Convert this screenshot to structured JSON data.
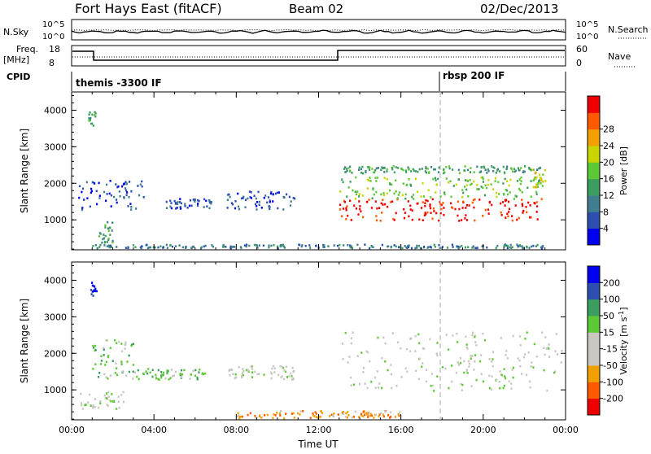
{
  "header": {
    "station": "Fort Hays East (fitACF)",
    "beam": "Beam 02",
    "date": "02/Dec/2013"
  },
  "status_panels": {
    "nsky_label": "N.Sky",
    "nsky_ticks": [
      "10^5",
      "10^0"
    ],
    "nsearch_label": "N.Search",
    "nsearch_ticks": [
      "10^5",
      "10^0"
    ],
    "freq_label_1": "Freq.",
    "freq_label_2": "[MHz]",
    "freq_ticks": [
      "18",
      "8"
    ],
    "nave_label": "Nave",
    "nave_ticks": [
      "60",
      "0"
    ],
    "cpid_label": "CPID",
    "cpid_entries": [
      "themis -3300 IF",
      "rbsp 200 IF"
    ]
  },
  "chart_data": [
    {
      "type": "heatmap",
      "quantity": "Power",
      "ylabel": "Slant Range [km]",
      "xlabel": "",
      "yticks": [
        "1000",
        "2000",
        "3000",
        "4000"
      ],
      "ylim": [
        180,
        4500
      ],
      "xlim": [
        0,
        24
      ],
      "colorbar": {
        "label": "Power [dB]",
        "ticks": [
          "4",
          "8",
          "12",
          "16",
          "20",
          "24",
          "28"
        ],
        "colors": [
          "#0000ee",
          "#2c4fb0",
          "#3f7e8e",
          "#3c9e5e",
          "#5ec936",
          "#c9d400",
          "#f0a000",
          "#ff5a00",
          "#ee0000"
        ]
      },
      "regions": [
        {
          "t": [
            0.3,
            3.5
          ],
          "r": [
            1300,
            2100
          ],
          "level": 1
        },
        {
          "t": [
            4.5,
            7.0
          ],
          "r": [
            1300,
            1600
          ],
          "level": 1
        },
        {
          "t": [
            7.5,
            10.8
          ],
          "r": [
            1300,
            1800
          ],
          "level": 1
        },
        {
          "t": [
            1.3,
            2.0
          ],
          "r": [
            400,
            1000
          ],
          "level": 3
        },
        {
          "t": [
            0.8,
            1.2
          ],
          "r": [
            3600,
            4000
          ],
          "level": 3
        },
        {
          "t": [
            13.0,
            22.8
          ],
          "r": [
            1000,
            1600
          ],
          "level": 8
        },
        {
          "t": [
            13.0,
            22.8
          ],
          "r": [
            1600,
            2200
          ],
          "level": 4
        },
        {
          "t": [
            13.2,
            22.8
          ],
          "r": [
            2300,
            2500
          ],
          "level": 3
        },
        {
          "t": [
            22.3,
            23.0
          ],
          "r": [
            1900,
            2400
          ],
          "level": 5
        },
        {
          "t": [
            1.0,
            23.0
          ],
          "r": [
            200,
            350
          ],
          "level": 2
        }
      ]
    },
    {
      "type": "heatmap",
      "quantity": "Velocity",
      "ylabel": "Slant Range [km]",
      "xlabel": "Time UT",
      "xticks": [
        "00:00",
        "04:00",
        "08:00",
        "12:00",
        "16:00",
        "20:00",
        "00:00"
      ],
      "yticks": [
        "1000",
        "2000",
        "3000",
        "4000"
      ],
      "ylim": [
        180,
        4500
      ],
      "xlim": [
        0,
        24
      ],
      "colorbar": {
        "label": "Velocity [m s",
        "label_sup": "-1",
        "label_end": "]",
        "ticks": [
          "-200",
          "-100",
          "-50",
          "-15",
          "15",
          "50",
          "100",
          "200"
        ],
        "colors": [
          "#ee0000",
          "#ff5a00",
          "#f0a000",
          "#c8c8c0",
          "#c8c8c0",
          "#5ec936",
          "#3c9e5e",
          "#2c4fb0",
          "#0000ee"
        ]
      },
      "regions": [
        {
          "t": [
            1.0,
            3.0
          ],
          "r": [
            1300,
            2400
          ],
          "level": 5
        },
        {
          "t": [
            3.0,
            6.5
          ],
          "r": [
            1300,
            1600
          ],
          "level": 5
        },
        {
          "t": [
            7.5,
            10.8
          ],
          "r": [
            1300,
            1700
          ],
          "level": 4
        },
        {
          "t": [
            0.4,
            2.5
          ],
          "r": [
            500,
            1000
          ],
          "level": 4
        },
        {
          "t": [
            0.9,
            1.2
          ],
          "r": [
            3600,
            4000
          ],
          "level": 8
        },
        {
          "t": [
            13.0,
            23.8
          ],
          "r": [
            1000,
            2600
          ],
          "level": 4
        },
        {
          "t": [
            8.0,
            16.0
          ],
          "r": [
            200,
            450
          ],
          "level": 2
        }
      ]
    }
  ]
}
